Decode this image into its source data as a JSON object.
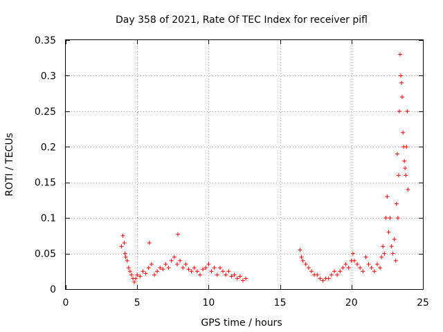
{
  "chart_data": {
    "type": "scatter",
    "title": "Day 358 of 2021, Rate Of TEC Index for receiver pifl",
    "xlabel": "GPS time / hours",
    "ylabel": "ROTI / TECUs",
    "xlim": [
      0,
      25
    ],
    "ylim": [
      0,
      0.35
    ],
    "grid": true,
    "marker": "+",
    "marker_color": "#ff0000",
    "x_ticks": [
      0,
      5,
      10,
      15,
      20,
      25
    ],
    "x_tick_labels": [
      "0",
      "5",
      "10",
      "15",
      "20",
      "25"
    ],
    "y_ticks": [
      0,
      0.05,
      0.1,
      0.15,
      0.2,
      0.25,
      0.3,
      0.35
    ],
    "y_tick_labels": [
      "0",
      "0.05",
      "0.1",
      "0.15",
      "0.2",
      "0.25",
      "0.3",
      "0.35"
    ],
    "series": [
      {
        "name": "ROTI",
        "x": [
          3.9,
          4.0,
          4.1,
          4.15,
          4.2,
          4.3,
          4.4,
          4.5,
          4.6,
          4.7,
          4.8,
          4.9,
          5.0,
          5.2,
          5.4,
          5.6,
          5.8,
          5.85,
          6.0,
          6.2,
          6.4,
          6.6,
          6.8,
          7.0,
          7.2,
          7.4,
          7.6,
          7.8,
          7.85,
          8.0,
          8.2,
          8.4,
          8.6,
          8.8,
          9.0,
          9.2,
          9.4,
          9.6,
          9.8,
          10.0,
          10.2,
          10.4,
          10.6,
          10.8,
          11.0,
          11.2,
          11.4,
          11.6,
          11.8,
          12.0,
          12.2,
          12.4,
          12.6,
          16.4,
          16.5,
          16.6,
          16.8,
          17.0,
          17.2,
          17.4,
          17.6,
          17.8,
          18.0,
          18.2,
          18.4,
          18.6,
          18.8,
          19.0,
          19.2,
          19.4,
          19.6,
          19.8,
          20.0,
          20.1,
          20.2,
          20.4,
          20.6,
          20.8,
          21.0,
          21.2,
          21.4,
          21.6,
          21.8,
          22.0,
          22.1,
          22.2,
          22.3,
          22.4,
          22.5,
          22.6,
          22.7,
          22.8,
          22.9,
          23.0,
          23.1,
          23.15,
          23.2,
          23.25,
          23.3,
          23.35,
          23.4,
          23.45,
          23.5,
          23.55,
          23.6,
          23.65,
          23.7,
          23.75,
          23.8,
          23.85,
          23.9,
          23.95
        ],
        "y": [
          0.06,
          0.075,
          0.065,
          0.05,
          0.045,
          0.04,
          0.03,
          0.025,
          0.02,
          0.015,
          0.01,
          0.015,
          0.02,
          0.018,
          0.025,
          0.022,
          0.03,
          0.065,
          0.035,
          0.02,
          0.025,
          0.03,
          0.028,
          0.035,
          0.03,
          0.04,
          0.045,
          0.035,
          0.077,
          0.04,
          0.03,
          0.035,
          0.028,
          0.025,
          0.03,
          0.025,
          0.02,
          0.028,
          0.03,
          0.035,
          0.025,
          0.03,
          0.02,
          0.03,
          0.025,
          0.02,
          0.025,
          0.018,
          0.02,
          0.015,
          0.018,
          0.012,
          0.015,
          0.055,
          0.045,
          0.04,
          0.035,
          0.03,
          0.025,
          0.02,
          0.02,
          0.015,
          0.012,
          0.015,
          0.015,
          0.02,
          0.025,
          0.02,
          0.025,
          0.03,
          0.035,
          0.03,
          0.04,
          0.05,
          0.04,
          0.035,
          0.03,
          0.025,
          0.045,
          0.035,
          0.03,
          0.025,
          0.035,
          0.03,
          0.045,
          0.06,
          0.05,
          0.1,
          0.13,
          0.08,
          0.1,
          0.06,
          0.05,
          0.07,
          0.04,
          0.12,
          0.19,
          0.1,
          0.16,
          0.25,
          0.33,
          0.3,
          0.29,
          0.27,
          0.22,
          0.2,
          0.18,
          0.17,
          0.16,
          0.2,
          0.25,
          0.14
        ]
      }
    ]
  }
}
